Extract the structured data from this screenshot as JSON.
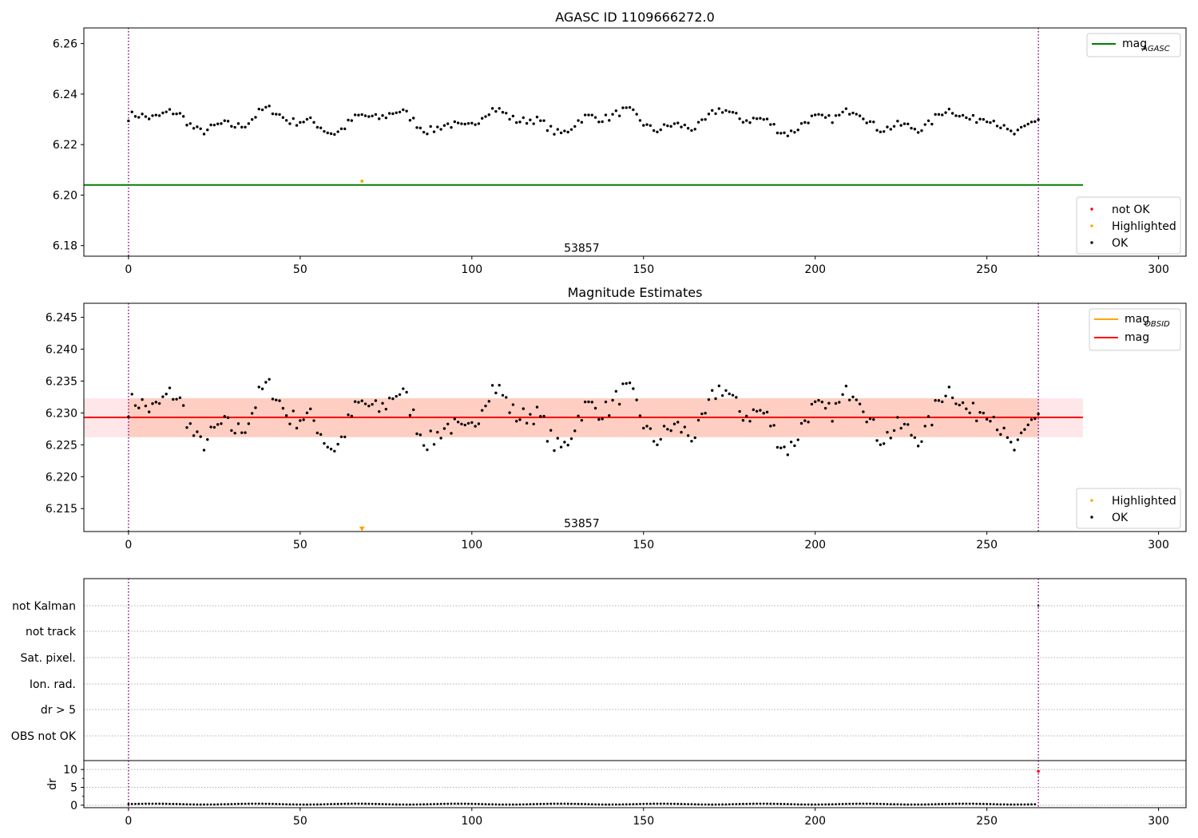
{
  "chart_data": [
    {
      "type": "scatter",
      "title": "AGASC ID 1109666272.0",
      "xlim": [
        -13,
        308
      ],
      "ylim": [
        6.1758,
        6.2662
      ],
      "xticks": [
        0,
        50,
        100,
        150,
        200,
        250,
        300
      ],
      "yticks": [
        6.18,
        6.2,
        6.22,
        6.24,
        6.26
      ],
      "ytick_labels": [
        "6.18",
        "6.20",
        "6.22",
        "6.24",
        "6.26"
      ],
      "vlines": [
        0,
        265
      ],
      "annotation": "53857",
      "annotation_x": 132,
      "annotation_y": 6.1775,
      "reference_line": {
        "name": "mag",
        "subscript": "AGASC",
        "value": 6.204,
        "x_range": [
          -13,
          278
        ],
        "color": "#008000"
      },
      "highlighted_points": [
        {
          "x": 68,
          "y": 6.2055
        }
      ],
      "ok_mean": 6.2293,
      "ok_amplitude": 0.0058,
      "ok_count": 266,
      "legend_lines": {
        "position": "top-right",
        "entries": [
          {
            "name": "mag",
            "subscript": "AGASC",
            "color": "#008000"
          }
        ]
      },
      "legend_points": {
        "position": "bottom-right",
        "entries": [
          {
            "name": "not OK",
            "color": "#ff0000"
          },
          {
            "name": "Highlighted",
            "color": "#ffa500"
          },
          {
            "name": "OK",
            "color": "#000000"
          }
        ]
      }
    },
    {
      "type": "scatter",
      "title": "Magnitude Estimates",
      "xlim": [
        -13,
        308
      ],
      "ylim": [
        6.2114,
        6.2472
      ],
      "xticks": [
        0,
        50,
        100,
        150,
        200,
        250,
        300
      ],
      "yticks": [
        6.215,
        6.22,
        6.225,
        6.23,
        6.235,
        6.24,
        6.245
      ],
      "ytick_labels": [
        "6.215",
        "6.220",
        "6.225",
        "6.230",
        "6.235",
        "6.240",
        "6.245"
      ],
      "vlines": [
        0,
        265
      ],
      "annotation": "53857",
      "annotation_x": 132,
      "annotation_y": 6.2121,
      "mag_line": {
        "name": "mag",
        "value": 6.2293,
        "x_range": [
          -13,
          278
        ],
        "color": "#ff0000"
      },
      "mag_obsid_line": {
        "name": "mag",
        "subscript": "OBSID",
        "value": 6.2293,
        "x_range": [
          0,
          265
        ],
        "color": "#ffa500"
      },
      "band_pink": {
        "low": 6.2262,
        "high": 6.2323,
        "x_range": [
          -13,
          278
        ],
        "color": "#ffb6c1"
      },
      "band_orange": {
        "low": 6.2262,
        "high": 6.2323,
        "x_range": [
          0,
          265
        ],
        "color": "#ffa07a"
      },
      "highlighted_points": [
        {
          "x": 68,
          "y": 6.2118,
          "marker": "triangle-down"
        }
      ],
      "ok_count": 266,
      "legend_lines": {
        "position": "top-right",
        "entries": [
          {
            "name": "mag",
            "subscript": "OBSID",
            "color": "#ffa500"
          },
          {
            "name": "mag",
            "color": "#ff0000"
          }
        ]
      },
      "legend_points": {
        "position": "bottom-right",
        "entries": [
          {
            "name": "Highlighted",
            "color": "#ffa500"
          },
          {
            "name": "OK",
            "color": "#000000"
          }
        ]
      }
    },
    {
      "type": "scatter",
      "title": "",
      "xlim": [
        -13,
        308
      ],
      "xticks": [
        0,
        50,
        100,
        150,
        200,
        250,
        300
      ],
      "vlines": [
        0,
        265
      ],
      "flag_rows": [
        "not Kalman",
        "not track",
        "Sat. pixel.",
        "Ion. rad.",
        "dr > 5",
        "OBS not OK"
      ],
      "dr": {
        "ylabel": "dr",
        "ylim": [
          -0.7,
          12.5
        ],
        "yticks": [
          0,
          5,
          10
        ],
        "ytick_labels": [
          "0",
          "5",
          "10"
        ],
        "typical_value": 0.3,
        "flagged_points": [
          {
            "x": 265,
            "y": 9.5,
            "color": "#ff0000"
          }
        ]
      }
    }
  ]
}
